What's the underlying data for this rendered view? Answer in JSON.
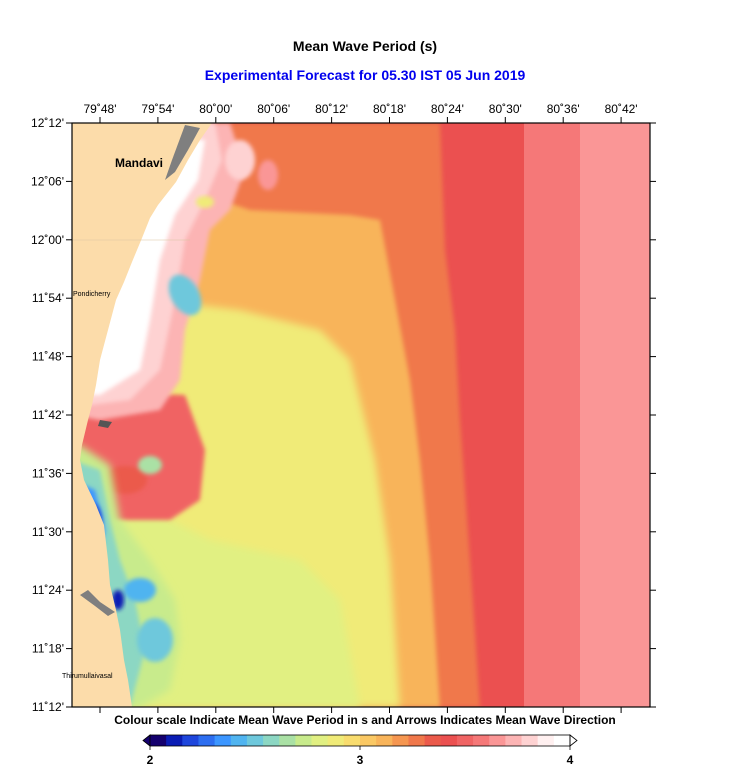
{
  "title": "Mean Wave Period (s)",
  "subtitle": "Experimental Forecast for  05.30 IST 05 Jun 2019",
  "subtitle_color": "#0000ee",
  "caption": "Colour scale Indicate Mean Wave Period in s and Arrows Indicates Mean Wave Direction",
  "axes": {
    "lon_labels": [
      "79˚48'",
      "79˚54'",
      "80˚00'",
      "80˚06'",
      "80˚12'",
      "80˚18'",
      "80˚24'",
      "80˚30'",
      "80˚36'",
      "80˚42'"
    ],
    "lat_labels": [
      "12˚12'",
      "12˚06'",
      "12˚00'",
      "11˚54'",
      "11˚48'",
      "11˚42'",
      "11˚36'",
      "11˚30'",
      "11˚24'",
      "11˚18'",
      "11˚12'"
    ]
  },
  "places": {
    "mandavi": "Mandavi",
    "pondicherry": "Pondicherry",
    "thirumullaivasal": "Thirumullaivasal"
  },
  "colorbar": {
    "tick_labels": [
      "2",
      "3",
      "4"
    ],
    "min": 2,
    "max": 4,
    "colors": [
      "#14006e",
      "#0a1cb4",
      "#1e46dc",
      "#2d6ef0",
      "#3c96ff",
      "#50b4f0",
      "#6ec8dc",
      "#8cd7c3",
      "#aae1a5",
      "#c8eb8c",
      "#e1f082",
      "#f0eb78",
      "#f8dc6e",
      "#fac864",
      "#f8b45a",
      "#f59650",
      "#f0784b",
      "#eb5a4b",
      "#eb5050",
      "#f06464",
      "#f57878",
      "#fa9696",
      "#fcb4b4",
      "#fed2d2",
      "#fff0f0",
      "#ffffff"
    ]
  },
  "colors": {
    "land": "#fcdcaa",
    "coast_gray": "#7f7f7f"
  }
}
